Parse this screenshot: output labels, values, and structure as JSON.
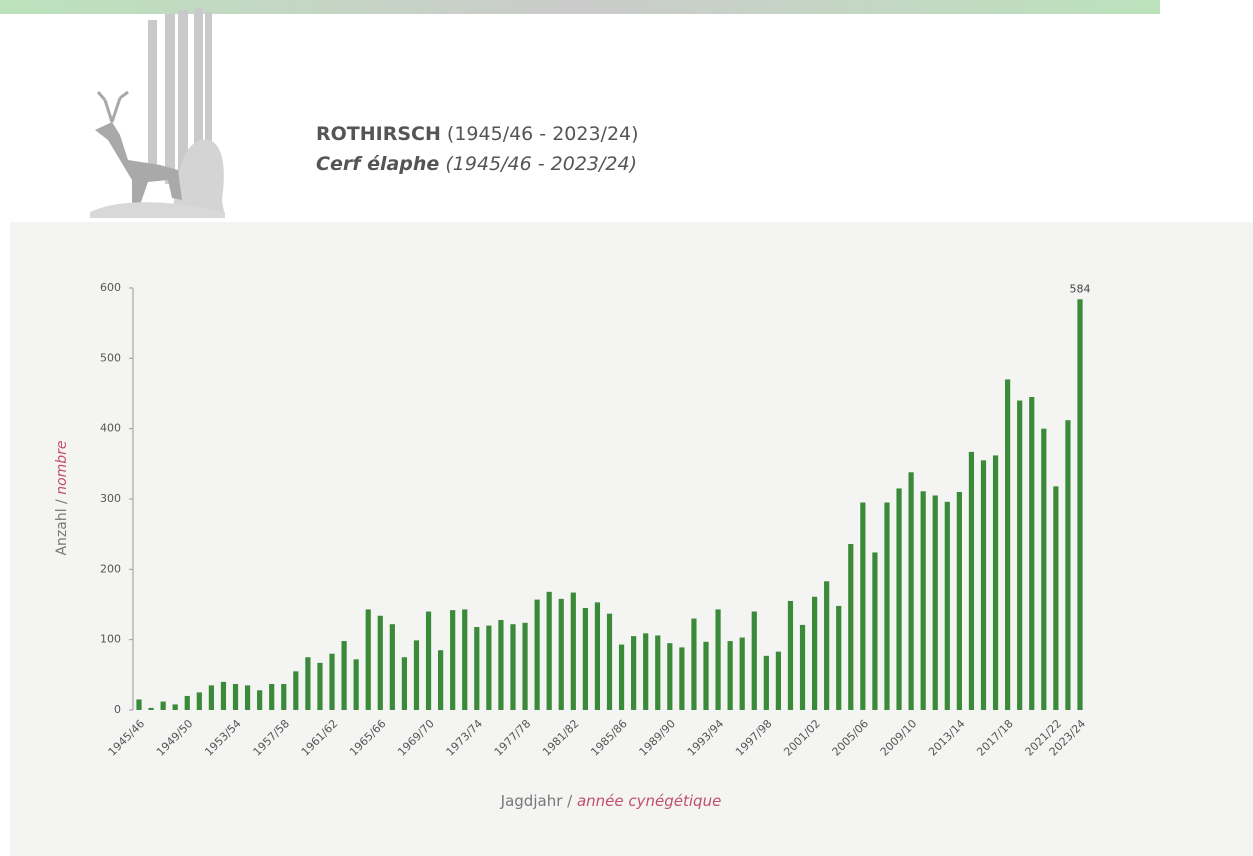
{
  "header": {
    "title_de": "ROTHIRSCH",
    "range_de": "(1945/46 - 2023/24)",
    "title_fr": "Cerf élaphe",
    "range_fr": "(1945/46 - 2023/24)"
  },
  "chart_data": {
    "type": "bar",
    "color": "#3b8a3a",
    "y_label_de": "Anzahl /",
    "y_label_fr": "nombre",
    "x_label_de": "Jagdjahr /",
    "x_label_fr": "année cynégétique",
    "categories": [
      "1945/46",
      null,
      null,
      null,
      "1949/50",
      null,
      null,
      null,
      "1953/54",
      null,
      null,
      null,
      "1957/58",
      null,
      null,
      null,
      "1961/62",
      null,
      null,
      null,
      "1965/66",
      null,
      null,
      null,
      "1969/70",
      null,
      null,
      null,
      "1973/74",
      null,
      null,
      null,
      "1977/78",
      null,
      null,
      null,
      "1981/82",
      null,
      null,
      null,
      "1985/86",
      null,
      null,
      null,
      "1989/90",
      null,
      null,
      null,
      "1993/94",
      null,
      null,
      null,
      "1997/98",
      null,
      null,
      null,
      "2001/02",
      null,
      null,
      null,
      "2005/06",
      null,
      null,
      null,
      "2009/10",
      null,
      null,
      null,
      "2013/14",
      null,
      null,
      null,
      "2017/18",
      null,
      null,
      null,
      "2021/22",
      null,
      "2023/24"
    ],
    "values": [
      15,
      3,
      12,
      8,
      20,
      25,
      35,
      40,
      37,
      35,
      28,
      37,
      37,
      55,
      75,
      67,
      80,
      98,
      72,
      143,
      134,
      122,
      75,
      99,
      140,
      85,
      142,
      143,
      118,
      120,
      128,
      122,
      124,
      157,
      168,
      158,
      167,
      145,
      153,
      137,
      93,
      105,
      109,
      106,
      95,
      89,
      130,
      97,
      143,
      98,
      103,
      140,
      77,
      83,
      155,
      121,
      161,
      183,
      148,
      236,
      295,
      224,
      295,
      315,
      338,
      311,
      305,
      296,
      310,
      367,
      355,
      362,
      470,
      440,
      445,
      400,
      318,
      412,
      584
    ],
    "labeled_values": [
      78
    ],
    "ylim": [
      0,
      600
    ],
    "yticks": [
      0,
      100,
      200,
      300,
      400,
      500,
      600
    ]
  }
}
